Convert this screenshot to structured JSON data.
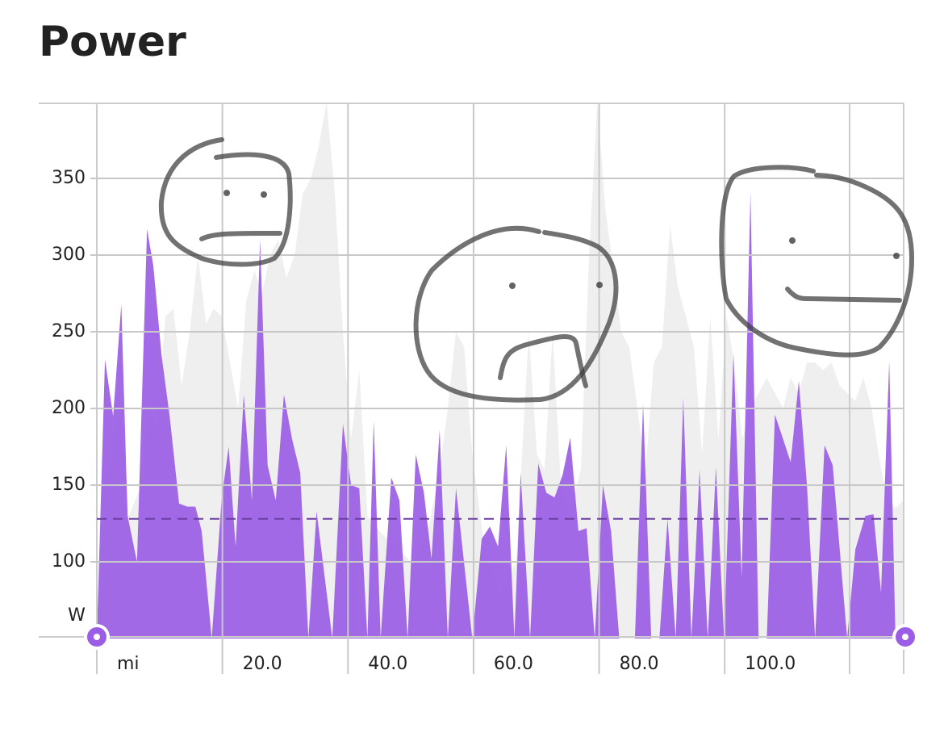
{
  "chart_data": {
    "type": "area",
    "title": "Power",
    "y_unit": "W",
    "x_unit": "mi",
    "xlim": [
      0,
      128.5
    ],
    "ylim": [
      50,
      400
    ],
    "xticks": [
      {
        "value": 20,
        "label": "20.0"
      },
      {
        "value": 40,
        "label": "40.0"
      },
      {
        "value": 60,
        "label": "60.0"
      },
      {
        "value": 80,
        "label": "80.0"
      },
      {
        "value": 100,
        "label": "100.0"
      }
    ],
    "yticks": [
      100,
      150,
      200,
      250,
      300,
      350
    ],
    "grid": true,
    "average": 128,
    "average_color": "#6a3fa0",
    "series": [
      {
        "color": "#efefef",
        "x": [
          0,
          1.3,
          2.6,
          3.9,
          5.1,
          7.1,
          8.4,
          9.6,
          10.9,
          12.2,
          13.5,
          14.8,
          16.1,
          17.4,
          18.6,
          19.9,
          21.2,
          22.5,
          23.8,
          25.1,
          26.3,
          27.6,
          28.9,
          30.2,
          31.5,
          32.8,
          34.1,
          35.3,
          36.6,
          37.9,
          39.2,
          40.5,
          41.8,
          43.1,
          45.0,
          47.6,
          50.1,
          52.7,
          54.6,
          55.9,
          57.2,
          58.5,
          59.8,
          61.7,
          64.3,
          66.8,
          68.8,
          70.1,
          71.3,
          72.6,
          73.9,
          75.2,
          77.1,
          78.4,
          79.7,
          81.0,
          82.3,
          83.5,
          84.8,
          86.1,
          87.4,
          88.7,
          90.0,
          91.3,
          92.5,
          93.8,
          95.1,
          96.4,
          97.7,
          99.0,
          100.3,
          101.5,
          102.8,
          104.1,
          105.4,
          106.7,
          108.0,
          109.3,
          110.5,
          111.8,
          113.1,
          114.4,
          115.7,
          117.0,
          118.3,
          119.5,
          120.8,
          122.1,
          123.4,
          124.7,
          126.0,
          127.2,
          128.5
        ],
        "values": [
          50,
          150,
          180,
          200,
          130,
          150,
          200,
          185,
          260,
          265,
          215,
          250,
          300,
          255,
          265,
          260,
          230,
          200,
          270,
          290,
          275,
          300,
          310,
          285,
          300,
          340,
          350,
          370,
          400,
          340,
          250,
          180,
          225,
          130,
          120,
          110,
          100,
          120,
          160,
          200,
          250,
          240,
          170,
          110,
          80,
          100,
          250,
          170,
          160,
          250,
          150,
          130,
          160,
          300,
          400,
          330,
          290,
          250,
          240,
          200,
          160,
          230,
          240,
          320,
          280,
          260,
          240,
          170,
          260,
          180,
          260,
          230,
          180,
          200,
          210,
          220,
          210,
          200,
          220,
          210,
          230,
          230,
          225,
          230,
          215,
          210,
          205,
          220,
          200,
          165,
          140,
          135,
          140
        ]
      },
      {
        "color": "#9b5de5",
        "x": [
          0,
          1.3,
          2.6,
          3.9,
          4.9,
          6.4,
          8.0,
          9.0,
          10.3,
          11.6,
          13.1,
          14.4,
          15.7,
          16.7,
          18.3,
          19.9,
          21.0,
          22.1,
          23.4,
          24.7,
          26.0,
          27.2,
          28.5,
          29.8,
          31.1,
          32.4,
          33.7,
          35.0,
          37.5,
          39.2,
          40.5,
          41.8,
          43.1,
          44.1,
          45.2,
          46.9,
          48.2,
          49.5,
          50.8,
          52.1,
          53.3,
          54.6,
          55.9,
          57.2,
          59.8,
          61.3,
          62.6,
          63.9,
          65.2,
          66.5,
          67.5,
          69.0,
          70.3,
          71.6,
          72.9,
          74.2,
          75.4,
          76.7,
          78.0,
          79.3,
          80.6,
          81.9,
          83.2,
          85.7,
          87.0,
          88.3,
          89.6,
          90.9,
          92.2,
          93.4,
          94.7,
          96.0,
          97.3,
          98.6,
          99.9,
          101.4,
          102.7,
          104.1,
          105.4,
          106.7,
          108.0,
          109.3,
          110.5,
          111.8,
          113.1,
          114.4,
          115.9,
          117.2,
          119.5,
          120.8,
          122.4,
          123.7,
          124.9,
          126.2,
          127.2
        ],
        "values": [
          50,
          232,
          195,
          268,
          130,
          100,
          317,
          293,
          235,
          195,
          138,
          136,
          136,
          120,
          50,
          142,
          175,
          110,
          209,
          140,
          310,
          163,
          140,
          209,
          180,
          158,
          50,
          133,
          50,
          190,
          150,
          148,
          50,
          192,
          50,
          155,
          140,
          50,
          170,
          145,
          102,
          186,
          50,
          148,
          50,
          115,
          123,
          110,
          176,
          50,
          158,
          50,
          164,
          145,
          142,
          157,
          181,
          120,
          122,
          50,
          150,
          120,
          50,
          50,
          203,
          50,
          50,
          128,
          50,
          207,
          50,
          160,
          50,
          162,
          50,
          236,
          90,
          341,
          50,
          50,
          196,
          180,
          165,
          218,
          150,
          50,
          176,
          163,
          50,
          108,
          130,
          131,
          80,
          231,
          50
        ]
      }
    ]
  }
}
